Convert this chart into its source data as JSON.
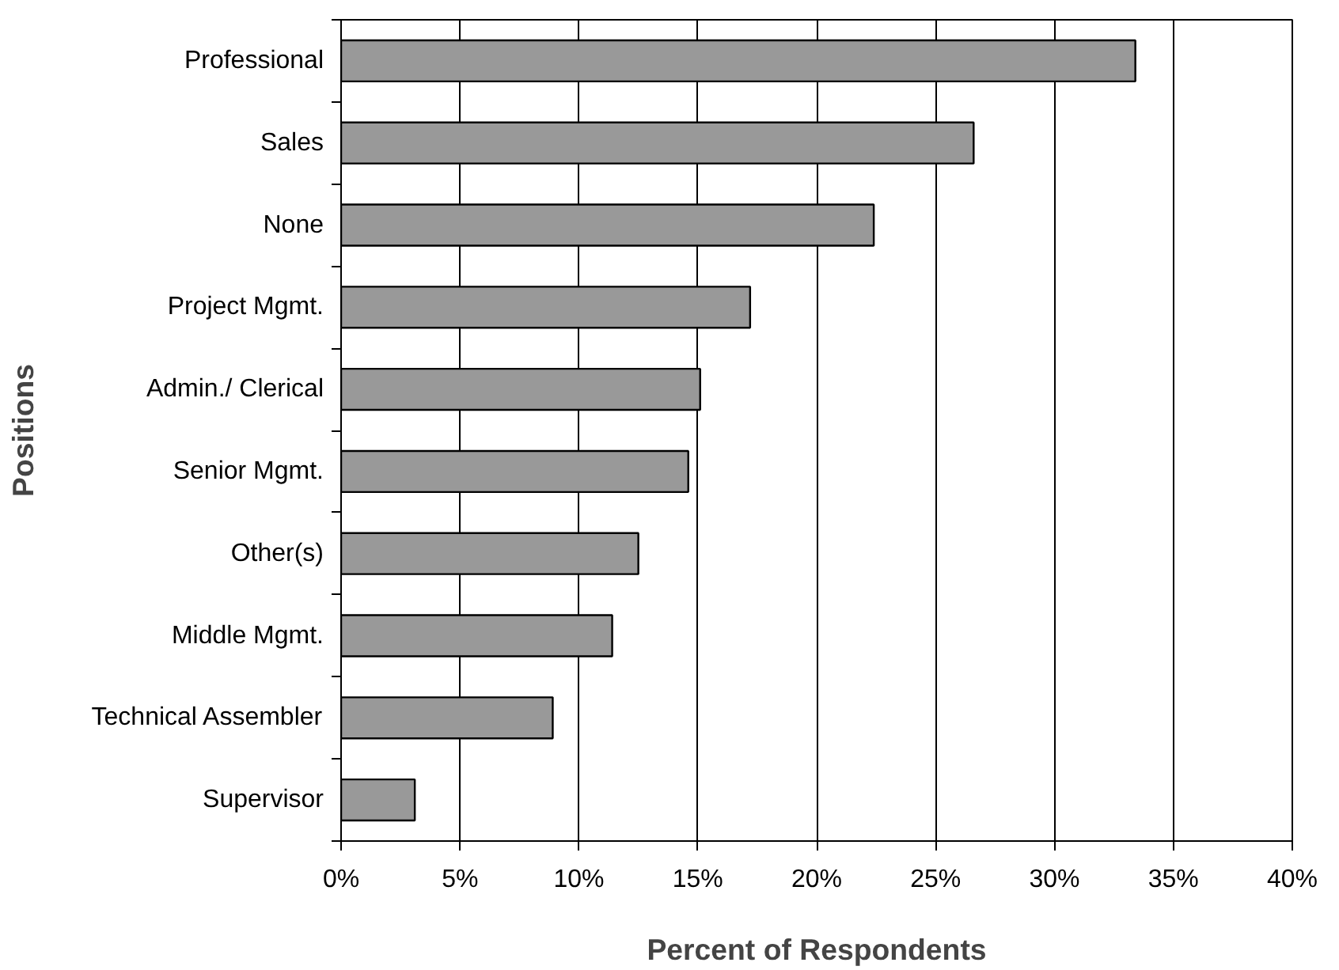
{
  "chart_data": {
    "type": "bar",
    "orientation": "horizontal",
    "xlabel": "Percent of Respondents",
    "ylabel": "Positions",
    "categories": [
      "Professional",
      "Sales",
      "None",
      "Project Mgmt.",
      "Admin./ Clerical",
      "Senior Mgmt.",
      "Other(s)",
      "Middle Mgmt.",
      "Technical Assembler",
      "Supervisor"
    ],
    "values": [
      33.4,
      26.6,
      22.4,
      17.2,
      15.1,
      14.6,
      12.5,
      11.4,
      8.9,
      3.1
    ],
    "color": "#999999",
    "xlim": [
      0,
      40
    ],
    "xticks": [
      {
        "value": 0,
        "label": "0%"
      },
      {
        "value": 5,
        "label": "5%"
      },
      {
        "value": 10,
        "label": "10%"
      },
      {
        "value": 15,
        "label": "15%"
      },
      {
        "value": 20,
        "label": "20%"
      },
      {
        "value": 25,
        "label": "25%"
      },
      {
        "value": 30,
        "label": "30%"
      },
      {
        "value": 35,
        "label": "35%"
      },
      {
        "value": 40,
        "label": "40%"
      }
    ],
    "grid": "x"
  }
}
